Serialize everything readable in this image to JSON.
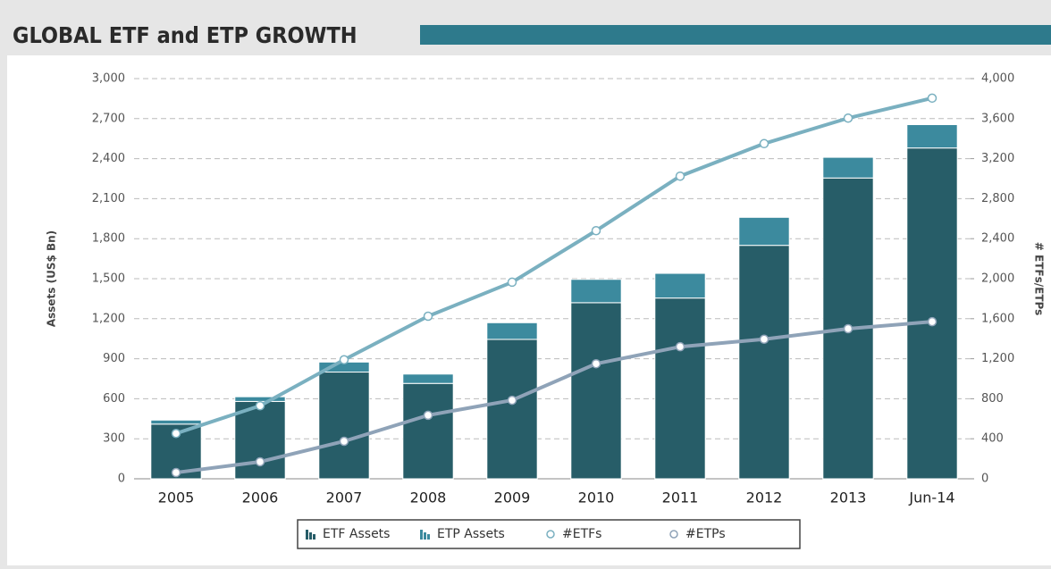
{
  "chart_data": {
    "type": "bar",
    "title": "GLOBAL ETF and ETP GROWTH",
    "categories": [
      "2005",
      "2006",
      "2007",
      "2008",
      "2009",
      "2010",
      "2011",
      "2012",
      "2013",
      "Jun-14"
    ],
    "series": [
      {
        "name": "ETF Assets",
        "color": "#275d68",
        "values": [
          410,
          580,
          800,
          715,
          1045,
          1320,
          1355,
          1750,
          2255,
          2480
        ]
      },
      {
        "name": "ETP Assets",
        "color": "#3c8a9e",
        "values": [
          30,
          35,
          75,
          70,
          125,
          175,
          185,
          210,
          155,
          175
        ]
      },
      {
        "name": "#ETFs",
        "color": "#7ab0c0",
        "axis": "y2",
        "values": [
          453,
          730,
          1190,
          1625,
          1965,
          2480,
          3025,
          3350,
          3605,
          3805
        ]
      },
      {
        "name": "#ETPs",
        "color": "#8fa3b8",
        "axis": "y2",
        "values": [
          62,
          170,
          375,
          635,
          785,
          1150,
          1320,
          1395,
          1500,
          1570
        ]
      }
    ],
    "ylabel": "Assets (US$ Bn)",
    "y2label": "# ETFs/ETPs",
    "ylim": [
      0,
      3000
    ],
    "yticks": [
      0,
      300,
      600,
      900,
      {
        "value": 1200,
        "label": "1,200"
      },
      {
        "value": 1500,
        "label": "1,500"
      },
      {
        "value": 1800,
        "label": "1,800"
      },
      {
        "value": 2100,
        "label": "2,100"
      },
      {
        "value": 2400,
        "label": "2,400"
      },
      {
        "value": 2700,
        "label": "2,700"
      },
      {
        "value": 3000,
        "label": "3,000"
      }
    ],
    "y2lim": [
      0,
      4000
    ],
    "y2ticks": [
      0,
      400,
      800,
      {
        "value": 1200,
        "label": "1,200"
      },
      {
        "value": 1600,
        "label": "1,600"
      },
      {
        "value": 2000,
        "label": "2,000"
      },
      {
        "value": 2400,
        "label": "2,400"
      },
      {
        "value": 2800,
        "label": "2,800"
      },
      {
        "value": 3200,
        "label": "3,200"
      },
      {
        "value": 3600,
        "label": "3,600"
      },
      {
        "value": 4000,
        "label": "4,000"
      }
    ],
    "grid": true,
    "stacked": true,
    "legend": "bottom"
  }
}
